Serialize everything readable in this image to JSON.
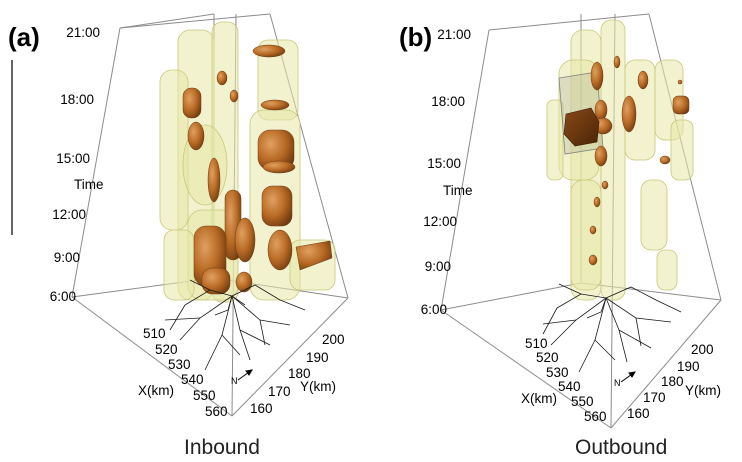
{
  "panels": [
    {
      "label": "(a)",
      "caption": "Inbound",
      "time_axis": {
        "title": "Time",
        "ticks": [
          "21:00",
          "18:00",
          "15:00",
          "12:00",
          "9:00",
          "6:00"
        ]
      },
      "x_axis": {
        "title": "X(km)",
        "ticks": [
          "510",
          "520",
          "530",
          "540",
          "550",
          "560"
        ]
      },
      "y_axis": {
        "title": "Y(km)",
        "ticks": [
          "200",
          "190",
          "180",
          "170",
          "160"
        ]
      }
    },
    {
      "label": "(b)",
      "caption": "Outbound",
      "time_axis": {
        "title": "Time",
        "ticks": [
          "21:00",
          "18:00",
          "15:00",
          "12:00",
          "9:00",
          "6:00"
        ]
      },
      "x_axis": {
        "title": "X(km)",
        "ticks": [
          "510",
          "520",
          "530",
          "540",
          "550",
          "560"
        ]
      },
      "y_axis": {
        "title": "Y(km)",
        "ticks": [
          "200",
          "190",
          "180",
          "170",
          "160"
        ]
      }
    }
  ],
  "colors": {
    "envelope": "#e8e8a8",
    "envelope_edge": "#c8c87a",
    "core": "#b86a24",
    "core_dark": "#7a4012",
    "box_edge": "#808080",
    "roads": "#1a1a1a"
  },
  "north_arrow_label": "N"
}
